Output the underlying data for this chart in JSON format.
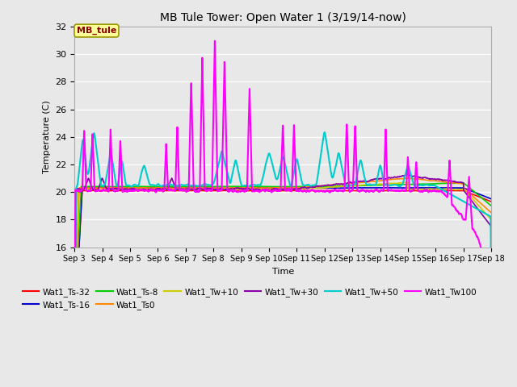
{
  "title": "MB Tule Tower: Open Water 1 (3/19/14-now)",
  "xlabel": "Time",
  "ylabel": "Temperature (C)",
  "ylim": [
    16,
    32
  ],
  "yticks": [
    16,
    18,
    20,
    22,
    24,
    26,
    28,
    30,
    32
  ],
  "xlim": [
    0,
    15
  ],
  "xtick_labels": [
    "Sep 3",
    "Sep 4",
    "Sep 5",
    "Sep 6",
    "Sep 7",
    "Sep 8",
    "Sep 9",
    "Sep 10",
    "Sep 11",
    "Sep 12",
    "Sep 13",
    "Sep 14",
    "Sep 15",
    "Sep 16",
    "Sep 17",
    "Sep 18"
  ],
  "background_color": "#e8e8e8",
  "plot_bg_color": "#e8e8e8",
  "grid_color": "#ffffff",
  "legend_box_color": "#ffff99",
  "legend_box_edge": "#999900",
  "series": {
    "Wat1_Ts-32": {
      "color": "#ff0000",
      "lw": 1.2
    },
    "Wat1_Ts-16": {
      "color": "#0000cc",
      "lw": 1.2
    },
    "Wat1_Ts-8": {
      "color": "#00cc00",
      "lw": 1.2
    },
    "Wat1_Ts0": {
      "color": "#ff8800",
      "lw": 1.2
    },
    "Wat1_Tw+10": {
      "color": "#cccc00",
      "lw": 1.2
    },
    "Wat1_Tw+30": {
      "color": "#8800aa",
      "lw": 1.2
    },
    "Wat1_Tw+50": {
      "color": "#00cccc",
      "lw": 1.5
    },
    "Wat1_Tw100": {
      "color": "#ff00ff",
      "lw": 1.5
    }
  },
  "figsize": [
    6.4,
    4.8
  ],
  "dpi": 100
}
